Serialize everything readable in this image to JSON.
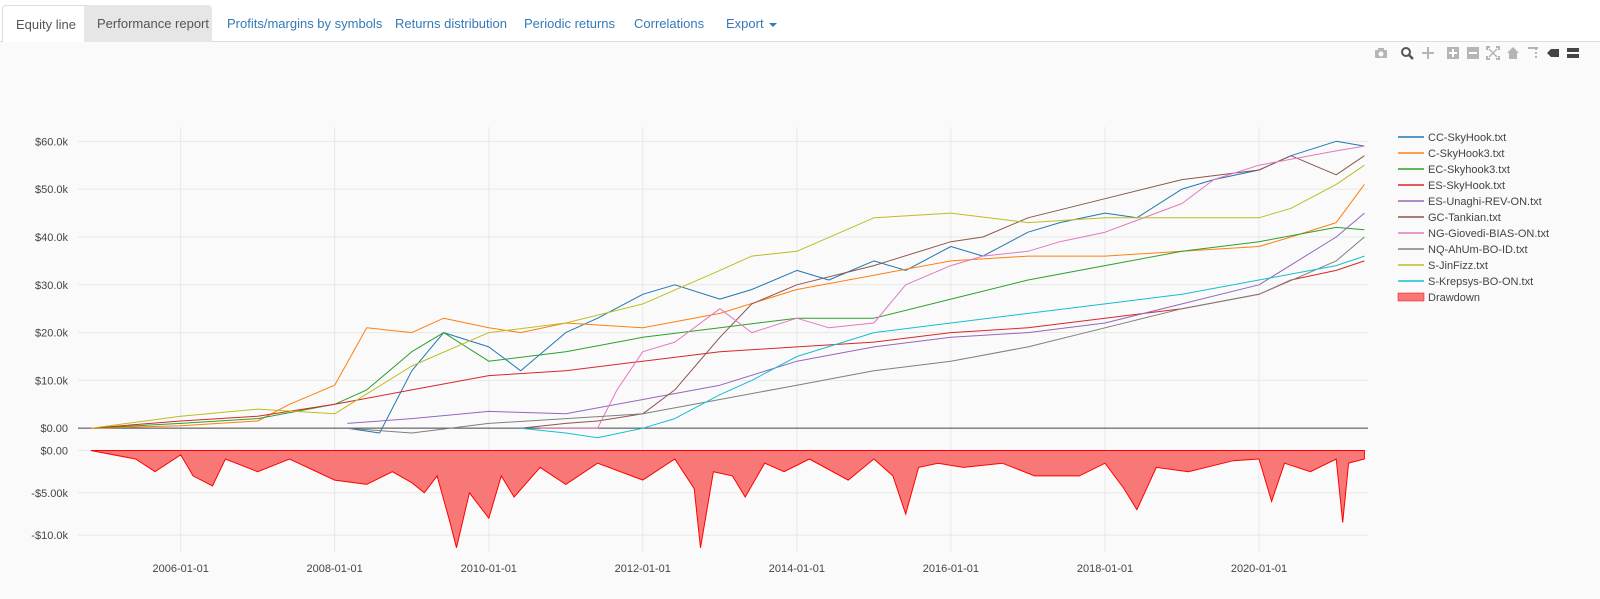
{
  "tabs": [
    {
      "label": "Equity line"
    },
    {
      "label": "Performance report"
    },
    {
      "label": "Profits/margins by symbols"
    },
    {
      "label": "Returns distribution"
    },
    {
      "label": "Periodic returns"
    },
    {
      "label": "Correlations"
    },
    {
      "label": "Export"
    }
  ],
  "modebar": [
    "camera-icon",
    "zoom-icon",
    "pan-icon",
    "zoom-in-icon",
    "zoom-out-icon",
    "autoscale-icon",
    "reset-axes-icon",
    "spike-lines-icon",
    "hover-closest-icon",
    "hover-compare-icon"
  ],
  "chart_data": {
    "type": "line",
    "grid": true,
    "legend_position": "top-right",
    "x_ticks": [
      "2006-01-01",
      "2008-01-01",
      "2010-01-01",
      "2012-01-01",
      "2014-01-01",
      "2016-01-01",
      "2018-01-01",
      "2020-01-01"
    ],
    "xlim": [
      "2004-09-01",
      "2021-06-01"
    ],
    "equity": {
      "ylim": [
        -800,
        63000
      ],
      "y_ticks": [
        "$60.0k",
        "$50.0k",
        "$40.0k",
        "$30.0k",
        "$20.0k",
        "$10.0k",
        "$0.00"
      ],
      "y_tick_values": [
        60000,
        50000,
        40000,
        30000,
        20000,
        10000,
        0
      ],
      "series": [
        {
          "name": "CC-SkyHook.txt",
          "color": "#1f77b4",
          "x": [
            "2008-03-01",
            "2008-08-01",
            "2009-01-01",
            "2009-06-01",
            "2010-01-01",
            "2010-06-01",
            "2011-01-01",
            "2011-06-01",
            "2012-01-01",
            "2012-06-01",
            "2013-01-01",
            "2013-06-01",
            "2014-01-01",
            "2014-06-01",
            "2015-01-01",
            "2015-06-01",
            "2016-01-01",
            "2016-06-01",
            "2017-01-01",
            "2017-06-01",
            "2018-01-01",
            "2018-06-01",
            "2019-01-01",
            "2019-06-01",
            "2020-01-01",
            "2020-06-01",
            "2021-01-01",
            "2021-05-15"
          ],
          "y": [
            0,
            -1000,
            12000,
            20000,
            17000,
            12000,
            20000,
            23000,
            28000,
            30000,
            27000,
            29000,
            33000,
            31000,
            35000,
            33000,
            38000,
            36000,
            41000,
            43000,
            45000,
            44000,
            50000,
            52000,
            54000,
            57000,
            60000,
            59000
          ]
        },
        {
          "name": "C-SkyHook3.txt",
          "color": "#ff7f0e",
          "x": [
            "2004-11-01",
            "2006-01-01",
            "2007-01-01",
            "2007-06-01",
            "2008-01-01",
            "2008-06-01",
            "2009-01-01",
            "2009-06-01",
            "2010-01-01",
            "2010-06-01",
            "2011-01-01",
            "2012-01-01",
            "2013-01-01",
            "2014-01-01",
            "2015-01-01",
            "2016-01-01",
            "2017-01-01",
            "2018-01-01",
            "2019-01-01",
            "2020-01-01",
            "2020-06-01",
            "2021-01-01",
            "2021-05-15"
          ],
          "y": [
            0,
            500,
            1500,
            5000,
            9000,
            21000,
            20000,
            23000,
            21000,
            20000,
            22000,
            21000,
            24000,
            29000,
            32000,
            35000,
            36000,
            36000,
            37000,
            38000,
            40000,
            43000,
            51000
          ]
        },
        {
          "name": "EC-Skyhook3.txt",
          "color": "#2ca02c",
          "x": [
            "2004-11-01",
            "2006-01-01",
            "2007-01-01",
            "2008-01-01",
            "2008-06-01",
            "2009-01-01",
            "2009-06-01",
            "2010-01-01",
            "2011-01-01",
            "2012-01-01",
            "2013-01-01",
            "2014-01-01",
            "2015-01-01",
            "2016-01-01",
            "2017-01-01",
            "2018-01-01",
            "2019-01-01",
            "2020-01-01",
            "2021-01-01",
            "2021-05-15"
          ],
          "y": [
            0,
            1000,
            2000,
            5000,
            8000,
            16000,
            20000,
            14000,
            16000,
            19000,
            21000,
            23000,
            23000,
            27000,
            31000,
            34000,
            37000,
            39000,
            42000,
            41500
          ]
        },
        {
          "name": "ES-SkyHook.txt",
          "color": "#d62728",
          "x": [
            "2004-11-01",
            "2006-01-01",
            "2007-01-01",
            "2008-01-01",
            "2009-01-01",
            "2010-01-01",
            "2011-01-01",
            "2012-01-01",
            "2013-01-01",
            "2014-01-01",
            "2015-01-01",
            "2016-01-01",
            "2017-01-01",
            "2018-01-01",
            "2019-01-01",
            "2020-01-01",
            "2020-06-01",
            "2021-01-01",
            "2021-05-15"
          ],
          "y": [
            0,
            1500,
            2500,
            5000,
            8000,
            11000,
            12000,
            14000,
            16000,
            17000,
            18000,
            20000,
            21000,
            23000,
            25000,
            28000,
            31000,
            33000,
            35000
          ]
        },
        {
          "name": "ES-Unaghi-REV-ON.txt",
          "color": "#9467bd",
          "x": [
            "2008-03-01",
            "2009-01-01",
            "2010-01-01",
            "2011-01-01",
            "2012-01-01",
            "2013-01-01",
            "2014-01-01",
            "2015-01-01",
            "2016-01-01",
            "2017-01-01",
            "2018-01-01",
            "2019-01-01",
            "2020-01-01",
            "2021-01-01",
            "2021-05-15"
          ],
          "y": [
            1000,
            2000,
            3500,
            3000,
            6000,
            9000,
            14000,
            17000,
            19000,
            20000,
            22000,
            26000,
            30000,
            40000,
            45000
          ]
        },
        {
          "name": "GC-Tankian.txt",
          "color": "#8c564b",
          "x": [
            "2010-06-01",
            "2011-01-01",
            "2011-06-01",
            "2012-01-01",
            "2012-06-01",
            "2013-01-01",
            "2013-06-01",
            "2014-01-01",
            "2015-01-01",
            "2016-01-01",
            "2016-06-01",
            "2017-01-01",
            "2018-01-01",
            "2019-01-01",
            "2020-01-01",
            "2020-06-01",
            "2021-01-01",
            "2021-05-15"
          ],
          "y": [
            0,
            1000,
            1500,
            3000,
            8000,
            19000,
            26000,
            30000,
            34000,
            39000,
            40000,
            44000,
            48000,
            52000,
            54000,
            57000,
            53000,
            57000
          ]
        },
        {
          "name": "NG-Giovedi-BIAS-ON.txt",
          "color": "#e377c2",
          "x": [
            "2010-09-01",
            "2011-06-01",
            "2011-09-01",
            "2012-01-01",
            "2012-06-01",
            "2013-01-01",
            "2013-06-01",
            "2014-01-01",
            "2014-06-01",
            "2015-01-01",
            "2015-06-01",
            "2016-01-01",
            "2016-06-01",
            "2017-01-01",
            "2017-06-01",
            "2018-01-01",
            "2019-01-01",
            "2019-06-01",
            "2020-01-01",
            "2021-01-01",
            "2021-05-15"
          ],
          "y": [
            0,
            0,
            8000,
            16000,
            18000,
            25000,
            20000,
            23000,
            21000,
            22000,
            30000,
            34000,
            36000,
            37000,
            39000,
            41000,
            47000,
            52000,
            55000,
            58000,
            59000
          ]
        },
        {
          "name": "NQ-AhUm-BO-ID.txt",
          "color": "#7f7f7f",
          "x": [
            "2008-03-01",
            "2009-01-01",
            "2010-01-01",
            "2011-01-01",
            "2012-01-01",
            "2013-01-01",
            "2014-01-01",
            "2015-01-01",
            "2016-01-01",
            "2017-01-01",
            "2018-01-01",
            "2019-01-01",
            "2020-01-01",
            "2021-01-01",
            "2021-05-15"
          ],
          "y": [
            0,
            -1000,
            1000,
            2000,
            3000,
            6000,
            9000,
            12000,
            14000,
            17000,
            21000,
            25000,
            28000,
            35000,
            40000
          ]
        },
        {
          "name": "S-JinFizz.txt",
          "color": "#bcbd22",
          "x": [
            "2004-11-01",
            "2006-01-01",
            "2007-01-01",
            "2008-01-01",
            "2009-01-01",
            "2010-01-01",
            "2011-01-01",
            "2012-01-01",
            "2013-01-01",
            "2013-06-01",
            "2014-01-01",
            "2015-01-01",
            "2016-01-01",
            "2017-01-01",
            "2018-01-01",
            "2019-01-01",
            "2020-01-01",
            "2020-06-01",
            "2021-01-01",
            "2021-05-15"
          ],
          "y": [
            0,
            2500,
            4000,
            3000,
            13000,
            20000,
            22000,
            26000,
            33000,
            36000,
            37000,
            44000,
            45000,
            43000,
            44000,
            44000,
            44000,
            46000,
            51000,
            55000
          ]
        },
        {
          "name": "S-Krepsys-BO-ON.txt",
          "color": "#17becf",
          "x": [
            "2010-06-01",
            "2011-01-01",
            "2011-06-01",
            "2012-01-01",
            "2012-06-01",
            "2013-01-01",
            "2013-06-01",
            "2014-01-01",
            "2015-01-01",
            "2016-01-01",
            "2017-01-01",
            "2018-01-01",
            "2019-01-01",
            "2020-01-01",
            "2021-01-01",
            "2021-05-15"
          ],
          "y": [
            0,
            -1000,
            -2000,
            0,
            2000,
            7000,
            10000,
            15000,
            20000,
            22000,
            24000,
            26000,
            28000,
            31000,
            34000,
            36000
          ]
        }
      ]
    },
    "drawdown": {
      "name": "Drawdown",
      "color": "#ff0000",
      "fill": "#f87878",
      "ylim": [
        -12000,
        300
      ],
      "y_ticks": [
        "$0.00",
        "-$5.00k",
        "-$10.0k"
      ],
      "y_tick_values": [
        0,
        -5000,
        -10000
      ],
      "x": [
        "2004-11-01",
        "2005-06-01",
        "2005-09-01",
        "2006-01-01",
        "2006-03-01",
        "2006-06-01",
        "2006-08-01",
        "2007-01-01",
        "2007-06-01",
        "2008-01-01",
        "2008-06-01",
        "2008-10-01",
        "2009-01-01",
        "2009-03-01",
        "2009-05-01",
        "2009-07-01",
        "2009-08-01",
        "2009-10-01",
        "2010-01-01",
        "2010-03-01",
        "2010-05-01",
        "2010-09-01",
        "2011-01-01",
        "2011-06-01",
        "2012-01-01",
        "2012-06-01",
        "2012-09-01",
        "2012-10-01",
        "2012-12-01",
        "2013-03-01",
        "2013-05-01",
        "2013-08-01",
        "2013-11-01",
        "2014-03-01",
        "2014-09-01",
        "2015-01-01",
        "2015-04-01",
        "2015-06-01",
        "2015-08-01",
        "2015-11-01",
        "2016-03-01",
        "2016-09-01",
        "2017-02-01",
        "2017-09-01",
        "2018-01-01",
        "2018-04-01",
        "2018-06-01",
        "2018-09-01",
        "2019-02-01",
        "2019-09-01",
        "2020-01-01",
        "2020-03-01",
        "2020-05-01",
        "2020-09-01",
        "2021-01-01",
        "2021-02-01",
        "2021-03-01",
        "2021-05-15"
      ],
      "y": [
        0,
        -1000,
        -2500,
        -500,
        -3000,
        -4200,
        -1000,
        -2500,
        -1000,
        -3500,
        -4000,
        -2500,
        -3800,
        -5000,
        -3000,
        -8500,
        -11500,
        -5000,
        -8000,
        -3000,
        -5500,
        -2000,
        -4000,
        -1500,
        -3500,
        -1000,
        -4500,
        -11500,
        -2500,
        -3000,
        -5500,
        -1500,
        -2500,
        -1000,
        -3500,
        -1000,
        -3000,
        -7500,
        -2000,
        -1500,
        -2000,
        -1500,
        -3000,
        -3000,
        -1500,
        -4500,
        -7000,
        -2000,
        -2500,
        -1200,
        -1000,
        -6000,
        -1500,
        -2500,
        -1000,
        -8500,
        -1500,
        -1000
      ]
    },
    "zero_line": 0
  }
}
